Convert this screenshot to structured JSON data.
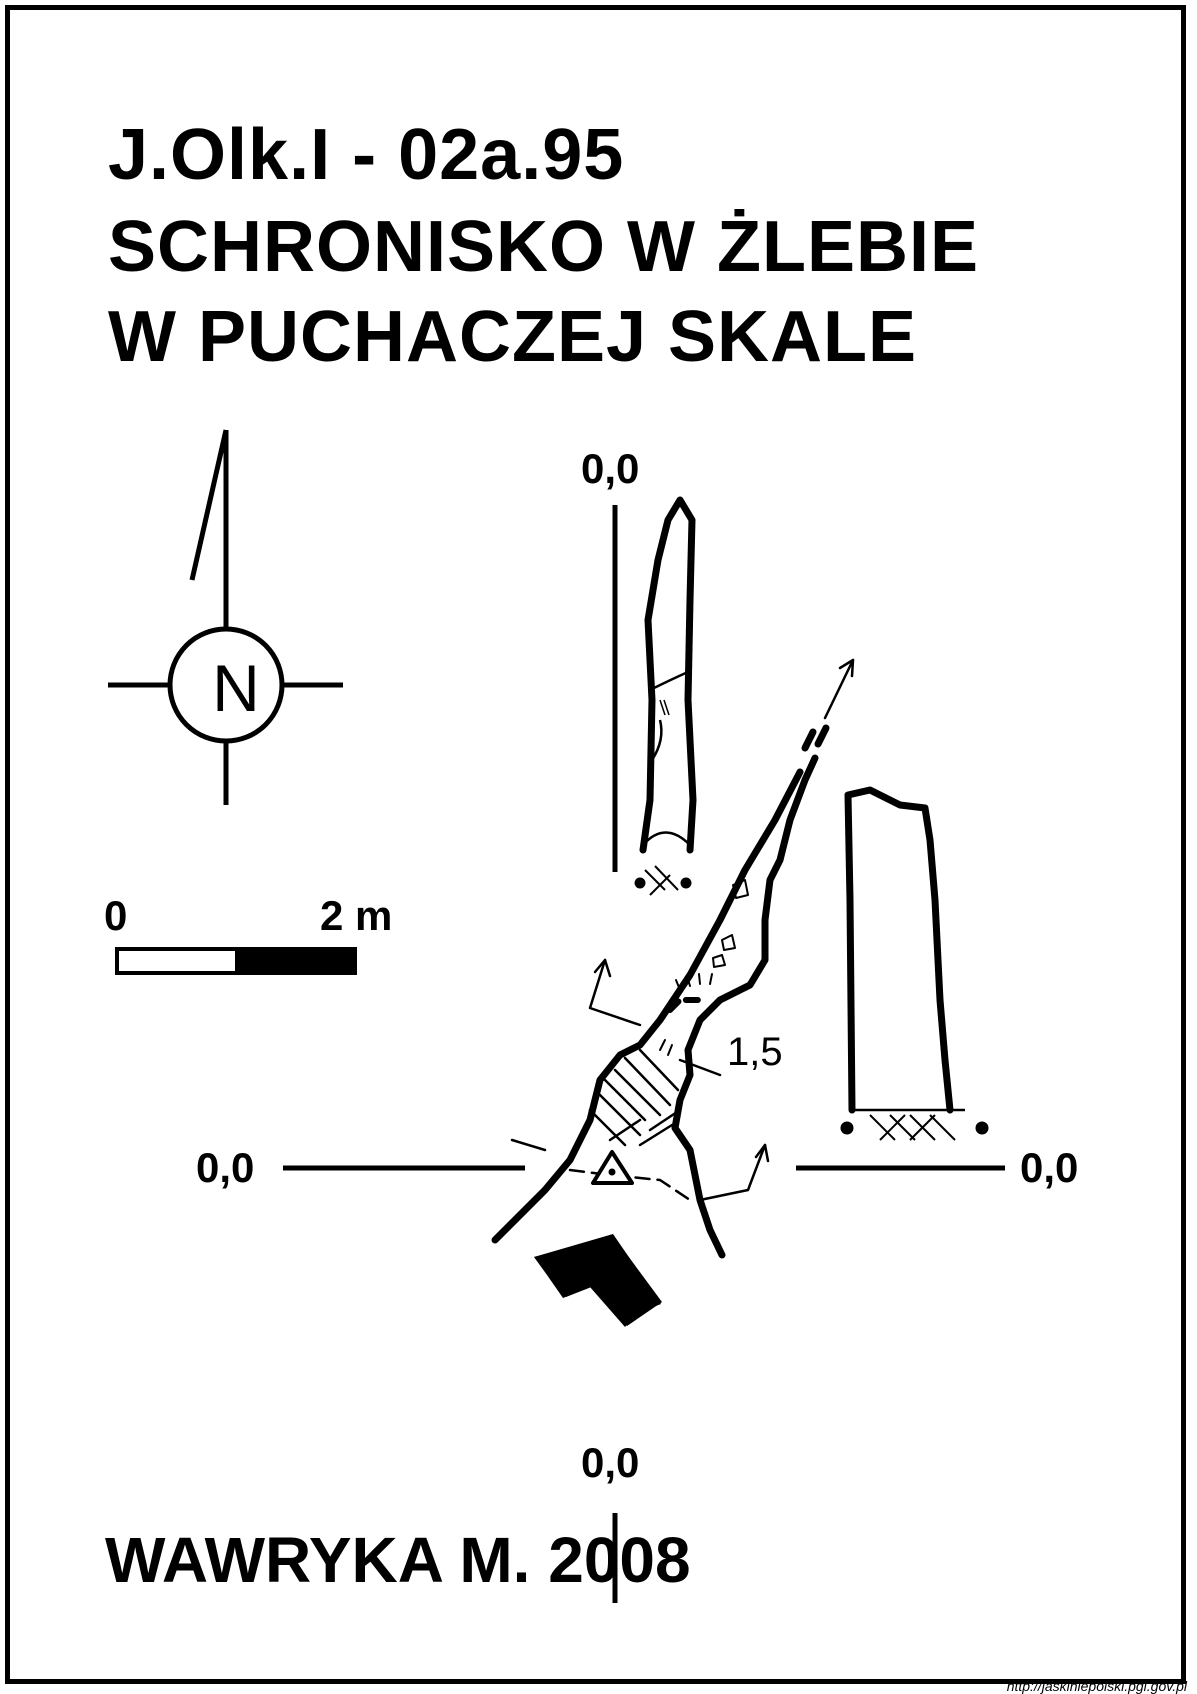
{
  "title": {
    "code": "J.Olk.I - 02a.95",
    "name_line1": "SCHRONISKO W ŻLEBIE",
    "name_line2": "W PUCHACZEJ SKALE"
  },
  "north_arrow": {
    "letter": "N",
    "icon": "north-arrow-icon"
  },
  "scale_bar": {
    "start_label": "0",
    "end_label": "2 m"
  },
  "reference_levels": {
    "top": "0,0",
    "left": "0,0",
    "right": "0,0",
    "bottom": "0,0"
  },
  "depth_marker": "1,5",
  "author": "WAWRYKA M. 2008",
  "source_url": "http://jaskiniepolski.pgi.gov.pl",
  "colors": {
    "ink": "#000000",
    "paper": "#ffffff"
  }
}
